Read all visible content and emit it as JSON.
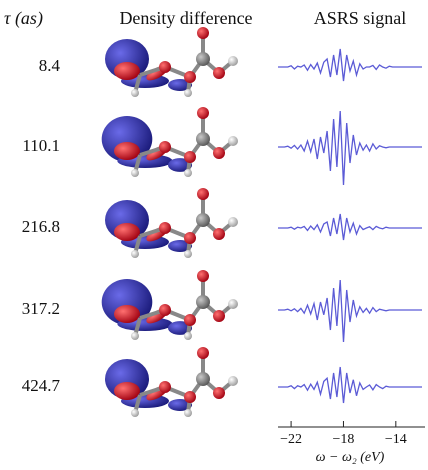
{
  "headers": {
    "tau": "τ (as)",
    "density": "Density difference",
    "signal": "ASRS signal"
  },
  "chart_data": {
    "type": "line",
    "xlabel": "ω − ω₂ (eV)",
    "x": [
      -23,
      -22.75,
      -22.5,
      -22.25,
      -22,
      -21.75,
      -21.5,
      -21.25,
      -21,
      -20.75,
      -20.5,
      -20.25,
      -20,
      -19.75,
      -19.5,
      -19.25,
      -19,
      -18.75,
      -18.5,
      -18.25,
      -18,
      -17.75,
      -17.5,
      -17.25,
      -17,
      -16.75,
      -16.5,
      -16.25,
      -16,
      -15.75,
      -15.5,
      -15.25,
      -15,
      -14.75,
      -14.5,
      -14.25,
      -14,
      -13.75,
      -13.5,
      -13.25,
      -13,
      -12.75,
      -12.5,
      -12.25,
      -12
    ],
    "xlim": [
      -23,
      -12
    ],
    "xticks": [
      {
        "value": -22,
        "label": "−22"
      },
      {
        "value": -18,
        "label": "−18"
      },
      {
        "value": -14,
        "label": "−14"
      }
    ],
    "ylim": [
      -1,
      1
    ],
    "series": [
      {
        "name": "8.4",
        "color": "#5b5bd6",
        "values": [
          0,
          0,
          0,
          0,
          0.03,
          -0.05,
          0.02,
          0,
          0.05,
          -0.08,
          0.06,
          -0.05,
          0.1,
          -0.15,
          0.12,
          0.2,
          -0.25,
          0.3,
          -0.2,
          0.45,
          -0.35,
          0.3,
          -0.1,
          0.15,
          -0.2,
          0.08,
          -0.05,
          0,
          0,
          0.04,
          -0.06,
          0.05,
          0,
          -0.03,
          0.02,
          0,
          0,
          0,
          0,
          0,
          0,
          0,
          0,
          0,
          0
        ]
      },
      {
        "name": "110.1",
        "color": "#5b5bd6",
        "values": [
          0,
          0,
          0,
          0.02,
          -0.03,
          0.04,
          -0.05,
          0.05,
          -0.1,
          0.15,
          -0.12,
          0.2,
          -0.3,
          0.25,
          -0.15,
          0.4,
          -0.6,
          0.7,
          -0.5,
          0.9,
          -0.95,
          0.6,
          -0.4,
          0.3,
          -0.2,
          0.1,
          -0.08,
          0.05,
          -0.1,
          0.08,
          -0.05,
          0.03,
          0,
          -0.02,
          0,
          0,
          0,
          0,
          0,
          0,
          0,
          0,
          0,
          0,
          0
        ]
      },
      {
        "name": "216.8",
        "color": "#5b5bd6",
        "values": [
          0,
          0,
          0,
          0,
          0.02,
          -0.03,
          0.02,
          0,
          0.04,
          -0.06,
          0.05,
          -0.04,
          0.08,
          -0.1,
          0.1,
          0.15,
          -0.2,
          0.25,
          -0.15,
          0.35,
          -0.3,
          0.25,
          -0.1,
          0.12,
          -0.15,
          0.06,
          -0.04,
          0,
          0.03,
          -0.04,
          0.04,
          0,
          -0.02,
          0.02,
          0,
          0,
          0,
          0,
          0,
          0,
          0,
          0,
          0,
          0,
          0
        ]
      },
      {
        "name": "317.2",
        "color": "#5b5bd6",
        "values": [
          0,
          0,
          0,
          0.02,
          -0.02,
          0.03,
          -0.04,
          0.04,
          -0.08,
          0.12,
          -0.1,
          0.16,
          -0.25,
          0.2,
          -0.12,
          0.3,
          -0.5,
          0.55,
          -0.4,
          0.75,
          -0.8,
          0.5,
          -0.3,
          0.25,
          -0.15,
          0.08,
          -0.06,
          0.04,
          -0.08,
          0.06,
          -0.04,
          0.02,
          0,
          -0.02,
          0,
          0,
          0,
          0,
          0,
          0,
          0,
          0,
          0,
          0,
          0
        ]
      },
      {
        "name": "424.7",
        "color": "#5b5bd6",
        "values": [
          0,
          0,
          0,
          0,
          0.03,
          -0.04,
          0.03,
          0,
          0.06,
          -0.08,
          0.07,
          -0.06,
          0.12,
          -0.18,
          0.14,
          0.22,
          -0.3,
          0.35,
          -0.25,
          0.5,
          -0.4,
          0.35,
          -0.15,
          0.18,
          -0.22,
          0.1,
          -0.06,
          0,
          0.05,
          -0.07,
          0.06,
          0,
          -0.04,
          0.02,
          0,
          0,
          0,
          0,
          0,
          0,
          0,
          0,
          0,
          0,
          0
        ]
      }
    ]
  }
}
